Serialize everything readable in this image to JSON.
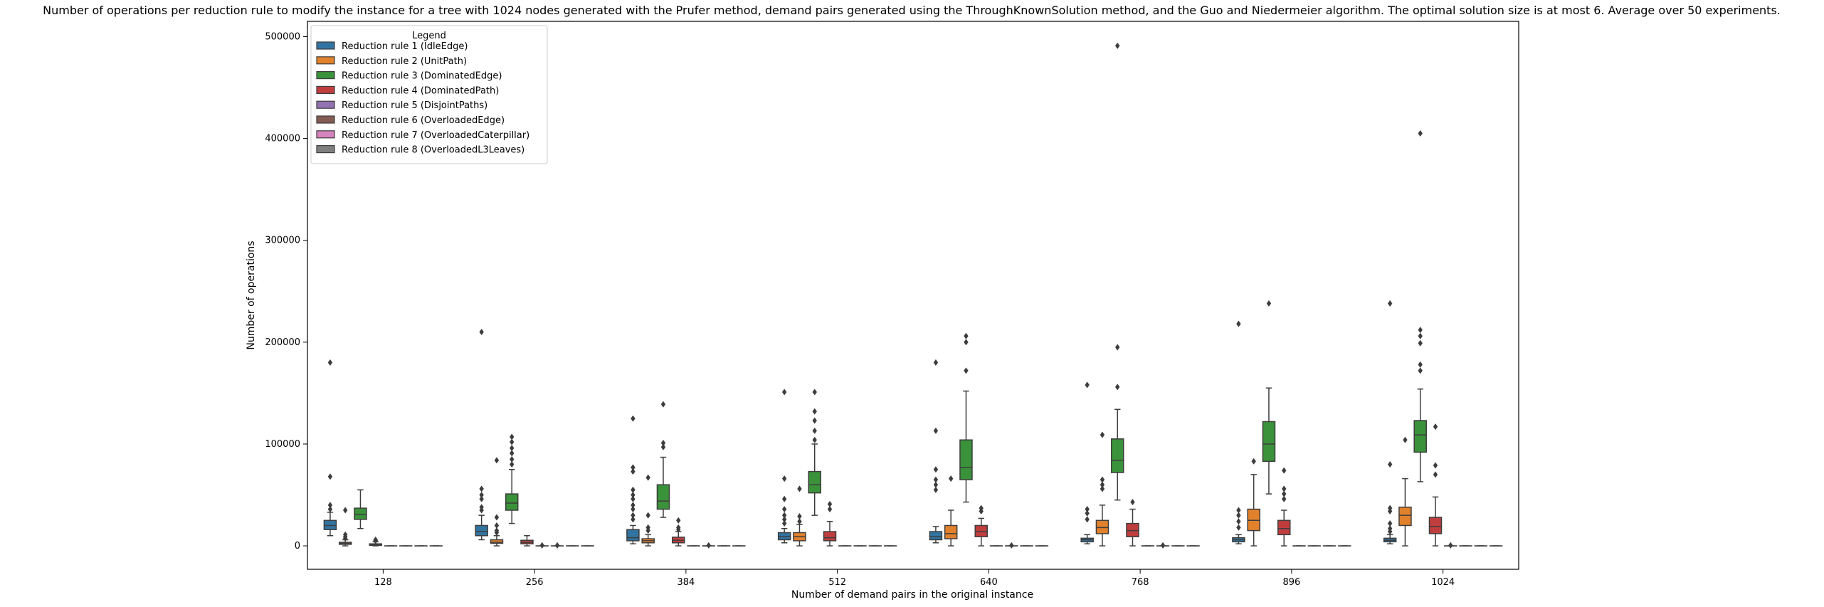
{
  "chart_data": {
    "type": "box",
    "title": "Number of operations per reduction rule to modify the instance for a tree with 1024 nodes generated with the Prufer method, demand pairs generated using the ThroughKnownSolution method, and the Guo and Niedermeier algorithm. The optimal solution size is at most 6. Average over 50 experiments.",
    "xlabel": "Number of demand pairs in the original instance",
    "ylabel": "Number of operations",
    "categories": [
      "128",
      "256",
      "384",
      "512",
      "640",
      "768",
      "896",
      "1024"
    ],
    "ylim": [
      -23000,
      515000
    ],
    "yticks": [
      0,
      100000,
      200000,
      300000,
      400000,
      500000
    ],
    "ytick_labels": [
      "0",
      "100000",
      "200000",
      "300000",
      "400000",
      "500000"
    ],
    "legend": {
      "title": "Legend",
      "placement": "top-left",
      "entries": [
        "Reduction rule 1 (IdleEdge)",
        "Reduction rule 2 (UnitPath)",
        "Reduction rule 3 (DominatedEdge)",
        "Reduction rule 4 (DominatedPath)",
        "Reduction rule 5 (DisjointPaths)",
        "Reduction rule 6 (OverloadedEdge)",
        "Reduction rule 7 (OverloadedCaterpillar)",
        "Reduction rule 8 (OverloadedL3Leaves)"
      ]
    },
    "series": [
      {
        "name": "Reduction rule 1 (IdleEdge)",
        "color": "#3274a1",
        "boxes": [
          {
            "q1": 16000,
            "median": 20000,
            "q3": 25000,
            "wlo": 10000,
            "whi": 33000,
            "fliers": [
              180000,
              68000,
              40000,
              36000
            ]
          },
          {
            "q1": 10000,
            "median": 14000,
            "q3": 20000,
            "wlo": 6000,
            "whi": 30000,
            "fliers": [
              210000,
              56000,
              50000,
              46000,
              38000,
              35000
            ]
          },
          {
            "q1": 5000,
            "median": 8000,
            "q3": 16000,
            "wlo": 2000,
            "whi": 20000,
            "fliers": [
              125000,
              77000,
              73000,
              55000,
              50000,
              46000,
              40000,
              36000,
              30000,
              26000
            ]
          },
          {
            "q1": 6000,
            "median": 9000,
            "q3": 13000,
            "wlo": 3000,
            "whi": 17000,
            "fliers": [
              151000,
              66000,
              46000,
              36000,
              30000,
              26000,
              22000
            ]
          },
          {
            "q1": 6000,
            "median": 9000,
            "q3": 14000,
            "wlo": 3000,
            "whi": 19000,
            "fliers": [
              180000,
              113000,
              75000,
              65000,
              60000,
              55000
            ]
          },
          {
            "q1": 4000,
            "median": 6000,
            "q3": 7500,
            "wlo": 2000,
            "whi": 11000,
            "fliers": [
              158000,
              36000,
              32000,
              26000
            ]
          },
          {
            "q1": 4000,
            "median": 6000,
            "q3": 8000,
            "wlo": 2000,
            "whi": 11000,
            "fliers": [
              218000,
              35000,
              30000,
              24000,
              18000
            ]
          },
          {
            "q1": 4000,
            "median": 5500,
            "q3": 7500,
            "wlo": 2000,
            "whi": 11000,
            "fliers": [
              238000,
              80000,
              37000,
              34000,
              22000,
              17000,
              14000
            ]
          }
        ]
      },
      {
        "name": "Reduction rule 2 (UnitPath)",
        "color": "#e1812c",
        "boxes": [
          {
            "q1": 1500,
            "median": 2500,
            "q3": 3500,
            "wlo": 0,
            "whi": 6000,
            "fliers": [
              35000,
              11000,
              9000,
              7500
            ]
          },
          {
            "q1": 2500,
            "median": 3500,
            "q3": 6000,
            "wlo": 0,
            "whi": 10000,
            "fliers": [
              84000,
              28000,
              20000,
              15000,
              13000
            ]
          },
          {
            "q1": 3000,
            "median": 5000,
            "q3": 7000,
            "wlo": 0,
            "whi": 11000,
            "fliers": [
              67000,
              30000,
              18000,
              15000
            ]
          },
          {
            "q1": 5000,
            "median": 9000,
            "q3": 13000,
            "wlo": 0,
            "whi": 21000,
            "fliers": [
              56000,
              29000,
              24000
            ]
          },
          {
            "q1": 7000,
            "median": 12000,
            "q3": 20000,
            "wlo": 0,
            "whi": 35000,
            "fliers": [
              66000
            ]
          },
          {
            "q1": 12000,
            "median": 18000,
            "q3": 25000,
            "wlo": 0,
            "whi": 40000,
            "fliers": [
              109000,
              65000,
              60000,
              56000
            ]
          },
          {
            "q1": 15000,
            "median": 25000,
            "q3": 36000,
            "wlo": 0,
            "whi": 70000,
            "fliers": [
              83000
            ]
          },
          {
            "q1": 20000,
            "median": 30000,
            "q3": 38000,
            "wlo": 0,
            "whi": 66000,
            "fliers": [
              104000
            ]
          }
        ]
      },
      {
        "name": "Reduction rule 3 (DominatedEdge)",
        "color": "#3a923a",
        "boxes": [
          {
            "q1": 26000,
            "median": 31000,
            "q3": 37000,
            "wlo": 17000,
            "whi": 55000,
            "fliers": []
          },
          {
            "q1": 35000,
            "median": 42000,
            "q3": 51000,
            "wlo": 22000,
            "whi": 75000,
            "fliers": [
              107000,
              102000,
              96000,
              91000,
              85000,
              80000
            ]
          },
          {
            "q1": 36000,
            "median": 44000,
            "q3": 60000,
            "wlo": 28000,
            "whi": 87000,
            "fliers": [
              139000,
              101000,
              97000
            ]
          },
          {
            "q1": 52000,
            "median": 60000,
            "q3": 73000,
            "wlo": 30000,
            "whi": 100000,
            "fliers": [
              151000,
              132000,
              123000,
              113000,
              104000
            ]
          },
          {
            "q1": 65000,
            "median": 77000,
            "q3": 104000,
            "wlo": 43000,
            "whi": 152000,
            "fliers": [
              206000,
              200000,
              172000
            ]
          },
          {
            "q1": 72000,
            "median": 84000,
            "q3": 105000,
            "wlo": 45000,
            "whi": 134000,
            "fliers": [
              491000,
              195000,
              156000
            ]
          },
          {
            "q1": 83000,
            "median": 100000,
            "q3": 122000,
            "wlo": 51000,
            "whi": 155000,
            "fliers": [
              238000
            ]
          },
          {
            "q1": 92000,
            "median": 109000,
            "q3": 123000,
            "wlo": 63000,
            "whi": 154000,
            "fliers": [
              405000,
              212000,
              206000,
              199000,
              178000,
              172000
            ]
          }
        ]
      },
      {
        "name": "Reduction rule 4 (DominatedPath)",
        "color": "#c03d3e",
        "boxes": [
          {
            "q1": 500,
            "median": 1000,
            "q3": 2000,
            "wlo": 0,
            "whi": 4000,
            "fliers": [
              6000,
              5500,
              5000
            ]
          },
          {
            "q1": 2000,
            "median": 3500,
            "q3": 5500,
            "wlo": 0,
            "whi": 10000,
            "fliers": []
          },
          {
            "q1": 3000,
            "median": 5500,
            "q3": 8500,
            "wlo": 0,
            "whi": 14000,
            "fliers": [
              25000,
              18000,
              16000
            ]
          },
          {
            "q1": 5000,
            "median": 8000,
            "q3": 14000,
            "wlo": 0,
            "whi": 24000,
            "fliers": [
              41000,
              36000
            ]
          },
          {
            "q1": 9000,
            "median": 14000,
            "q3": 20000,
            "wlo": 0,
            "whi": 27000,
            "fliers": [
              37000,
              34000
            ]
          },
          {
            "q1": 9000,
            "median": 15000,
            "q3": 22000,
            "wlo": 0,
            "whi": 36000,
            "fliers": [
              43000
            ]
          },
          {
            "q1": 11000,
            "median": 17000,
            "q3": 25000,
            "wlo": 0,
            "whi": 35000,
            "fliers": [
              74000,
              56000,
              51000,
              46000
            ]
          },
          {
            "q1": 12000,
            "median": 19000,
            "q3": 28000,
            "wlo": 0,
            "whi": 48000,
            "fliers": [
              117000,
              79000,
              70000
            ]
          }
        ]
      },
      {
        "name": "Reduction rule 5 (DisjointPaths)",
        "color": "#9372b2",
        "boxes": [
          {
            "q1": 0,
            "median": 0,
            "q3": 0,
            "wlo": 0,
            "whi": 0,
            "fliers": []
          },
          {
            "q1": 0,
            "median": 0,
            "q3": 0,
            "wlo": 0,
            "whi": 0,
            "fliers": [
              500
            ]
          },
          {
            "q1": 0,
            "median": 0,
            "q3": 0,
            "wlo": 0,
            "whi": 0,
            "fliers": []
          },
          {
            "q1": 0,
            "median": 0,
            "q3": 0,
            "wlo": 0,
            "whi": 0,
            "fliers": []
          },
          {
            "q1": 0,
            "median": 0,
            "q3": 0,
            "wlo": 0,
            "whi": 0,
            "fliers": []
          },
          {
            "q1": 0,
            "median": 0,
            "q3": 0,
            "wlo": 0,
            "whi": 0,
            "fliers": []
          },
          {
            "q1": 0,
            "median": 0,
            "q3": 0,
            "wlo": 0,
            "whi": 0,
            "fliers": []
          },
          {
            "q1": 0,
            "median": 0,
            "q3": 0,
            "wlo": 0,
            "whi": 0,
            "fliers": [
              500
            ]
          }
        ]
      },
      {
        "name": "Reduction rule 6 (OverloadedEdge)",
        "color": "#845b53",
        "boxes": [
          {
            "q1": 0,
            "median": 0,
            "q3": 0,
            "wlo": 0,
            "whi": 0,
            "fliers": []
          },
          {
            "q1": 0,
            "median": 0,
            "q3": 0,
            "wlo": 0,
            "whi": 0,
            "fliers": [
              500
            ]
          },
          {
            "q1": 0,
            "median": 0,
            "q3": 0,
            "wlo": 0,
            "whi": 0,
            "fliers": [
              500
            ]
          },
          {
            "q1": 0,
            "median": 0,
            "q3": 0,
            "wlo": 0,
            "whi": 0,
            "fliers": []
          },
          {
            "q1": 0,
            "median": 0,
            "q3": 0,
            "wlo": 0,
            "whi": 0,
            "fliers": [
              500
            ]
          },
          {
            "q1": 0,
            "median": 0,
            "q3": 0,
            "wlo": 0,
            "whi": 0,
            "fliers": [
              500
            ]
          },
          {
            "q1": 0,
            "median": 0,
            "q3": 0,
            "wlo": 0,
            "whi": 0,
            "fliers": []
          },
          {
            "q1": 0,
            "median": 0,
            "q3": 0,
            "wlo": 0,
            "whi": 0,
            "fliers": []
          }
        ]
      },
      {
        "name": "Reduction rule 7 (OverloadedCaterpillar)",
        "color": "#d684bd",
        "boxes": [
          {
            "q1": 0,
            "median": 0,
            "q3": 0,
            "wlo": 0,
            "whi": 0,
            "fliers": []
          },
          {
            "q1": 0,
            "median": 0,
            "q3": 0,
            "wlo": 0,
            "whi": 0,
            "fliers": []
          },
          {
            "q1": 0,
            "median": 0,
            "q3": 0,
            "wlo": 0,
            "whi": 0,
            "fliers": []
          },
          {
            "q1": 0,
            "median": 0,
            "q3": 0,
            "wlo": 0,
            "whi": 0,
            "fliers": []
          },
          {
            "q1": 0,
            "median": 0,
            "q3": 0,
            "wlo": 0,
            "whi": 0,
            "fliers": []
          },
          {
            "q1": 0,
            "median": 0,
            "q3": 0,
            "wlo": 0,
            "whi": 0,
            "fliers": []
          },
          {
            "q1": 0,
            "median": 0,
            "q3": 0,
            "wlo": 0,
            "whi": 0,
            "fliers": []
          },
          {
            "q1": 0,
            "median": 0,
            "q3": 0,
            "wlo": 0,
            "whi": 0,
            "fliers": []
          }
        ]
      },
      {
        "name": "Reduction rule 8 (OverloadedL3Leaves)",
        "color": "#7f7f7f",
        "boxes": [
          {
            "q1": 0,
            "median": 0,
            "q3": 0,
            "wlo": 0,
            "whi": 0,
            "fliers": []
          },
          {
            "q1": 0,
            "median": 0,
            "q3": 0,
            "wlo": 0,
            "whi": 0,
            "fliers": []
          },
          {
            "q1": 0,
            "median": 0,
            "q3": 0,
            "wlo": 0,
            "whi": 0,
            "fliers": []
          },
          {
            "q1": 0,
            "median": 0,
            "q3": 0,
            "wlo": 0,
            "whi": 0,
            "fliers": []
          },
          {
            "q1": 0,
            "median": 0,
            "q3": 0,
            "wlo": 0,
            "whi": 0,
            "fliers": []
          },
          {
            "q1": 0,
            "median": 0,
            "q3": 0,
            "wlo": 0,
            "whi": 0,
            "fliers": []
          },
          {
            "q1": 0,
            "median": 0,
            "q3": 0,
            "wlo": 0,
            "whi": 0,
            "fliers": []
          },
          {
            "q1": 0,
            "median": 0,
            "q3": 0,
            "wlo": 0,
            "whi": 0,
            "fliers": []
          }
        ]
      }
    ]
  }
}
